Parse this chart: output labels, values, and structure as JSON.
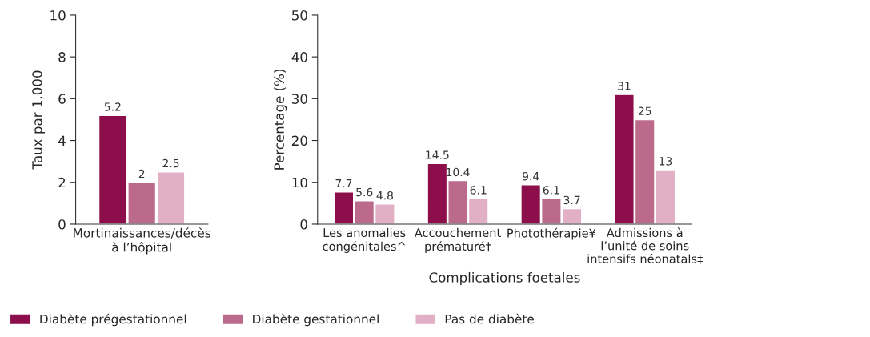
{
  "chart_data": [
    {
      "type": "bar",
      "ylabel": "Taux par 1,000",
      "categories": [
        "Mortinaissances/décès\nà l’hôpital"
      ],
      "ylim": [
        0,
        10
      ],
      "yticks": [
        0,
        2,
        4,
        6,
        8,
        10
      ],
      "data_labels": true,
      "legend": "bottom",
      "grid": false,
      "series": [
        {
          "name": "Diabète prégestationnel",
          "color": "#8c0f4b",
          "values": [
            5.2
          ]
        },
        {
          "name": "Diabète gestationnel",
          "color": "#bb6a8c",
          "values": [
            2
          ]
        },
        {
          "name": "Pas de diabète",
          "color": "#e2b0c4",
          "values": [
            2.5
          ]
        }
      ]
    },
    {
      "type": "bar",
      "ylabel": "Percentage (%)",
      "xlabel": "Complications foetales",
      "categories": [
        "Les anomalies\ncongénitales^",
        "Accouchement\nprématuré†",
        "Photothérapie¥",
        "Admissions à\nl’unité de soins\nintensifs néonatals‡"
      ],
      "ylim": [
        0,
        50
      ],
      "yticks": [
        0,
        10,
        20,
        30,
        40,
        50
      ],
      "data_labels": true,
      "grid": false,
      "series": [
        {
          "color": "#8c0f4b",
          "values": [
            7.7,
            14.5,
            9.4,
            31
          ]
        },
        {
          "color": "#bb6a8c",
          "values": [
            5.6,
            10.4,
            6.1,
            25
          ]
        },
        {
          "color": "#e2b0c4",
          "values": [
            4.8,
            6.1,
            3.7,
            13
          ]
        }
      ]
    }
  ]
}
